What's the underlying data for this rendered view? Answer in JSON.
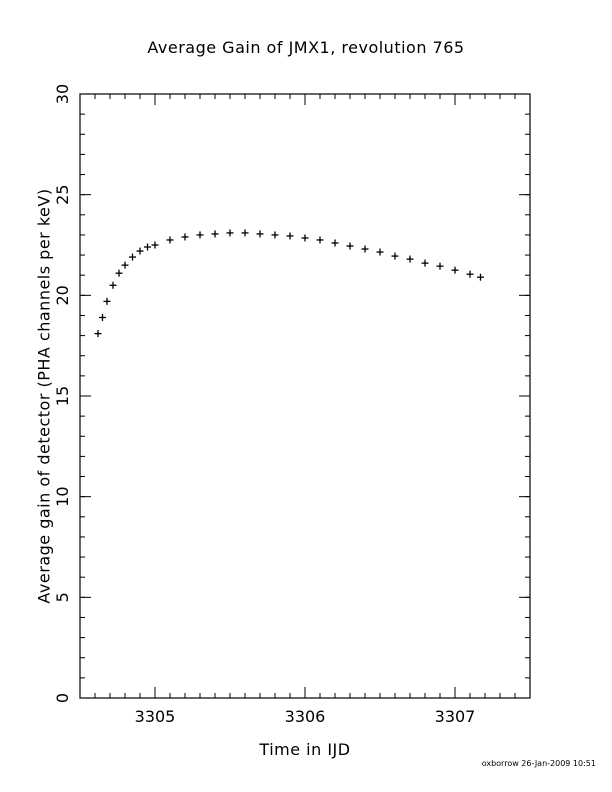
{
  "chart_data": {
    "type": "scatter",
    "title": "Average Gain of JMX1, revolution 765",
    "xlabel": "Time in IJD",
    "ylabel": "Average gain of detector (PHA channels per keV)",
    "xlim": [
      3304.5,
      3307.5
    ],
    "ylim": [
      0,
      30
    ],
    "x_ticks": [
      3305,
      3306,
      3307
    ],
    "y_ticks": [
      0,
      5,
      10,
      15,
      20,
      25,
      30
    ],
    "x_minor_step": 0.1,
    "y_minor_step": 1,
    "marker": "plus",
    "grid": false,
    "series": [
      {
        "x": [
          3304.62,
          3304.65,
          3304.68,
          3304.72,
          3304.76,
          3304.8,
          3304.85,
          3304.9,
          3304.95,
          3305.0,
          3305.1,
          3305.2,
          3305.3,
          3305.4,
          3305.5,
          3305.6,
          3305.7,
          3305.8,
          3305.9,
          3306.0,
          3306.1,
          3306.2,
          3306.3,
          3306.4,
          3306.5,
          3306.6,
          3306.7,
          3306.8,
          3306.9,
          3307.0,
          3307.1,
          3307.17
        ],
        "y": [
          18.1,
          18.9,
          19.7,
          20.5,
          21.1,
          21.5,
          21.9,
          22.2,
          22.4,
          22.5,
          22.75,
          22.9,
          23.0,
          23.05,
          23.1,
          23.1,
          23.05,
          23.0,
          22.95,
          22.85,
          22.75,
          22.6,
          22.45,
          22.3,
          22.15,
          21.95,
          21.8,
          21.6,
          21.45,
          21.25,
          21.05,
          20.9
        ]
      }
    ]
  },
  "footer": {
    "stamp": "oxborrow 26-Jan-2009 10:51"
  }
}
